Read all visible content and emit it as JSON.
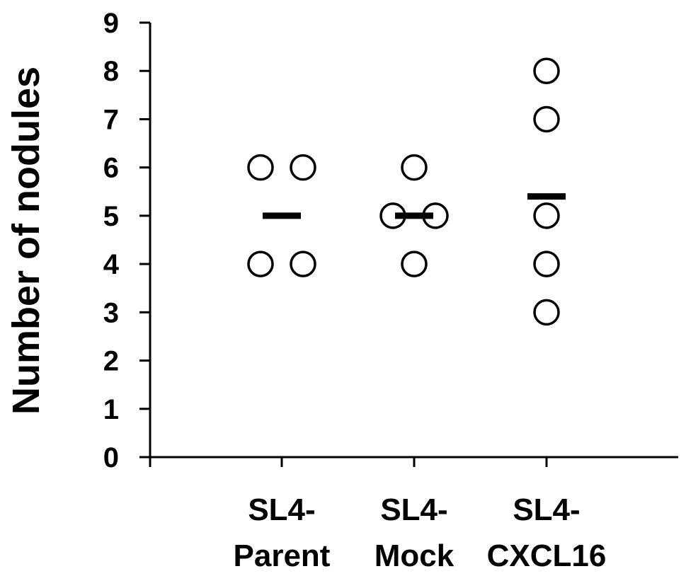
{
  "chart_data": {
    "type": "scatter",
    "title": "",
    "xlabel": "",
    "ylabel": "Number of nodules",
    "ylim": [
      0,
      9
    ],
    "yticks": [
      0,
      1,
      2,
      3,
      4,
      5,
      6,
      7,
      8,
      9
    ],
    "grid": false,
    "legend": "none",
    "categories": [
      {
        "line1": "SL4-",
        "line2": "Parent"
      },
      {
        "line1": "SL4-",
        "line2": "Mock"
      },
      {
        "line1": "SL4-",
        "line2": "CXCL16"
      }
    ],
    "groups": [
      {
        "points": [
          {
            "offset": -0.15,
            "y": 6
          },
          {
            "offset": 0.15,
            "y": 6
          },
          {
            "offset": -0.15,
            "y": 4
          },
          {
            "offset": 0.15,
            "y": 4
          }
        ],
        "mean": 5
      },
      {
        "points": [
          {
            "offset": 0,
            "y": 6
          },
          {
            "offset": -0.15,
            "y": 5
          },
          {
            "offset": 0.15,
            "y": 5
          },
          {
            "offset": 0,
            "y": 4
          }
        ],
        "mean": 5
      },
      {
        "points": [
          {
            "offset": 0,
            "y": 8
          },
          {
            "offset": 0,
            "y": 7
          },
          {
            "offset": 0,
            "y": 5
          },
          {
            "offset": 0,
            "y": 4
          },
          {
            "offset": 0,
            "y": 3
          }
        ],
        "mean": 5.4
      }
    ],
    "colors": {
      "marker_stroke": "#000000",
      "marker_fill": "#ffffff",
      "axis": "#000000"
    }
  }
}
